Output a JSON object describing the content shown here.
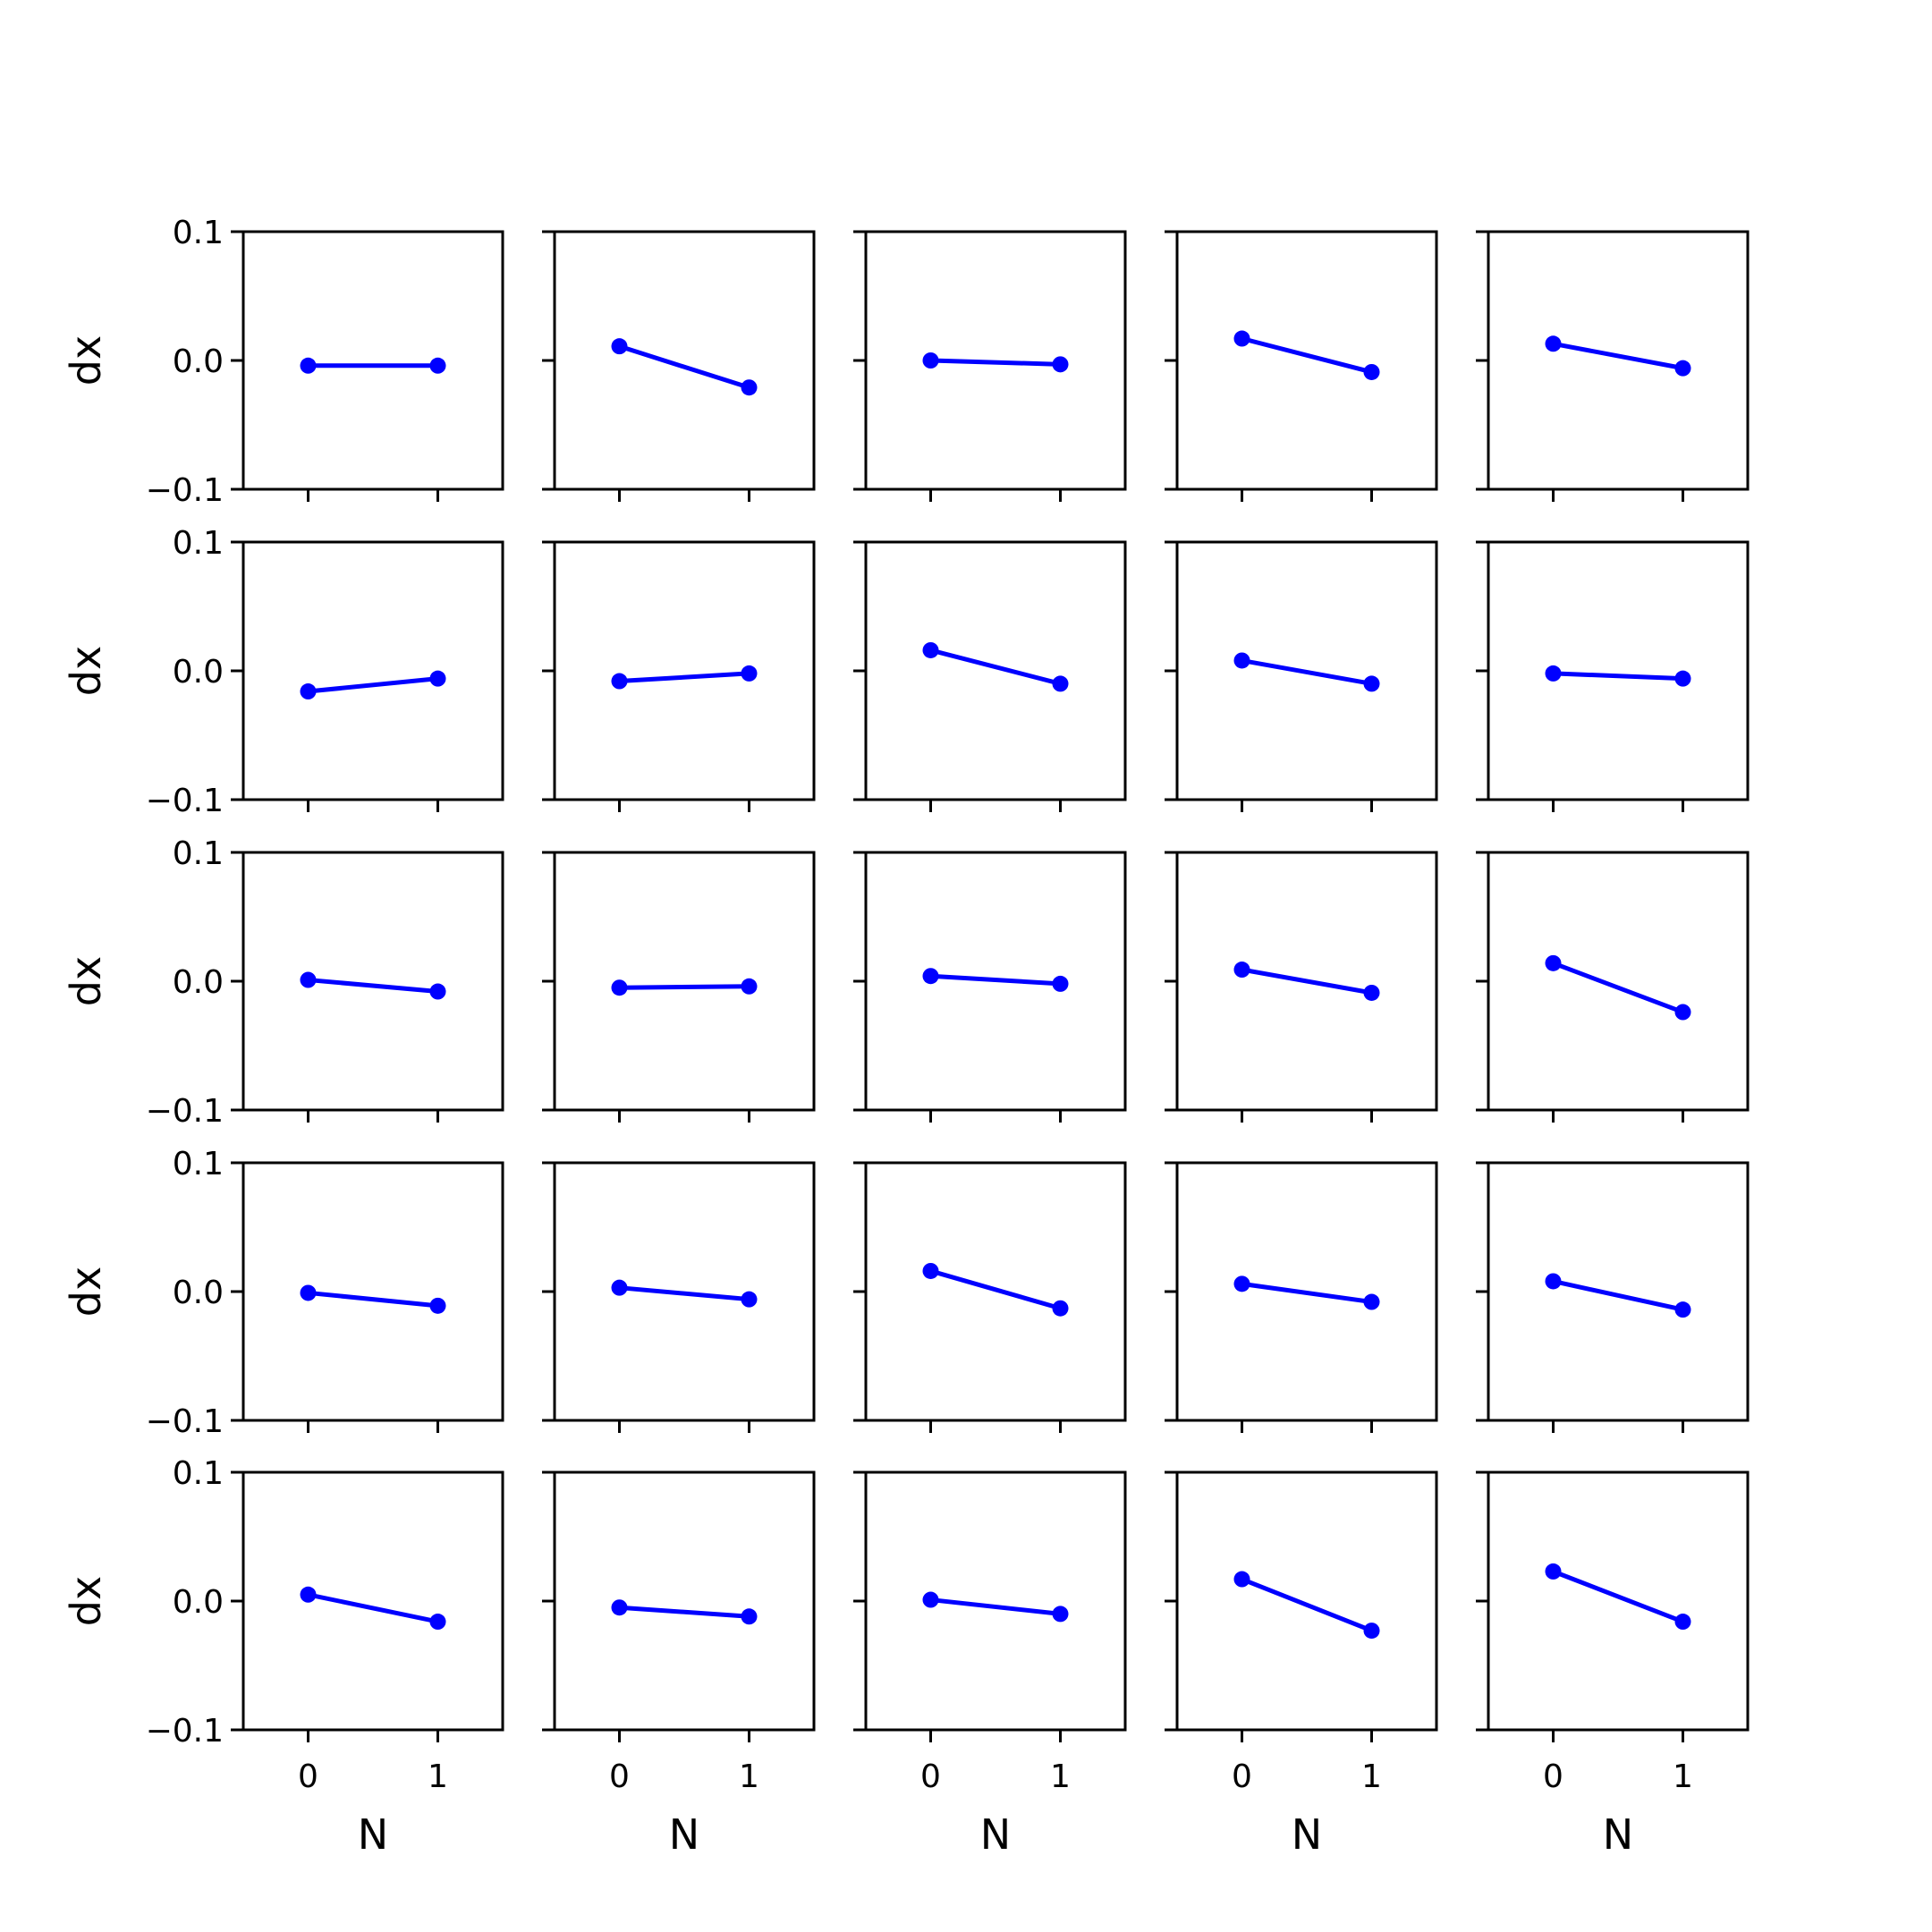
{
  "figure": {
    "rows": 5,
    "cols": 5,
    "line_color": "#0000ff",
    "axes_color": "#000000",
    "background": "#ffffff"
  },
  "chart_data": {
    "type": "line",
    "layout": "5x5 grid of subplots",
    "xlabel": "N",
    "ylabel": "dx",
    "x": [
      0,
      1
    ],
    "xticks": [
      0,
      1
    ],
    "xtick_labels": [
      "0",
      "1"
    ],
    "xlim": [
      -0.5,
      1.5
    ],
    "ylim": [
      -0.1,
      0.1
    ],
    "yticks": [
      -0.1,
      0.0,
      0.1
    ],
    "ytick_labels": [
      "−0.1",
      "0.0",
      "0.1"
    ],
    "grid": false,
    "marker": "circle",
    "panels": [
      [
        [
          -0.004,
          -0.004
        ],
        [
          0.011,
          -0.021
        ],
        [
          0.0,
          -0.003
        ],
        [
          0.017,
          -0.009
        ],
        [
          0.013,
          -0.006
        ]
      ],
      [
        [
          -0.016,
          -0.006
        ],
        [
          -0.008,
          -0.002
        ],
        [
          0.016,
          -0.01
        ],
        [
          0.008,
          -0.01
        ],
        [
          -0.002,
          -0.006
        ]
      ],
      [
        [
          0.001,
          -0.008
        ],
        [
          -0.005,
          -0.004
        ],
        [
          0.004,
          -0.002
        ],
        [
          0.009,
          -0.009
        ],
        [
          0.014,
          -0.024
        ]
      ],
      [
        [
          -0.001,
          -0.011
        ],
        [
          0.003,
          -0.006
        ],
        [
          0.016,
          -0.013
        ],
        [
          0.006,
          -0.008
        ],
        [
          0.008,
          -0.014
        ]
      ],
      [
        [
          0.005,
          -0.016
        ],
        [
          -0.005,
          -0.012
        ],
        [
          0.001,
          -0.01
        ],
        [
          0.017,
          -0.023
        ],
        [
          0.023,
          -0.016
        ]
      ]
    ]
  }
}
